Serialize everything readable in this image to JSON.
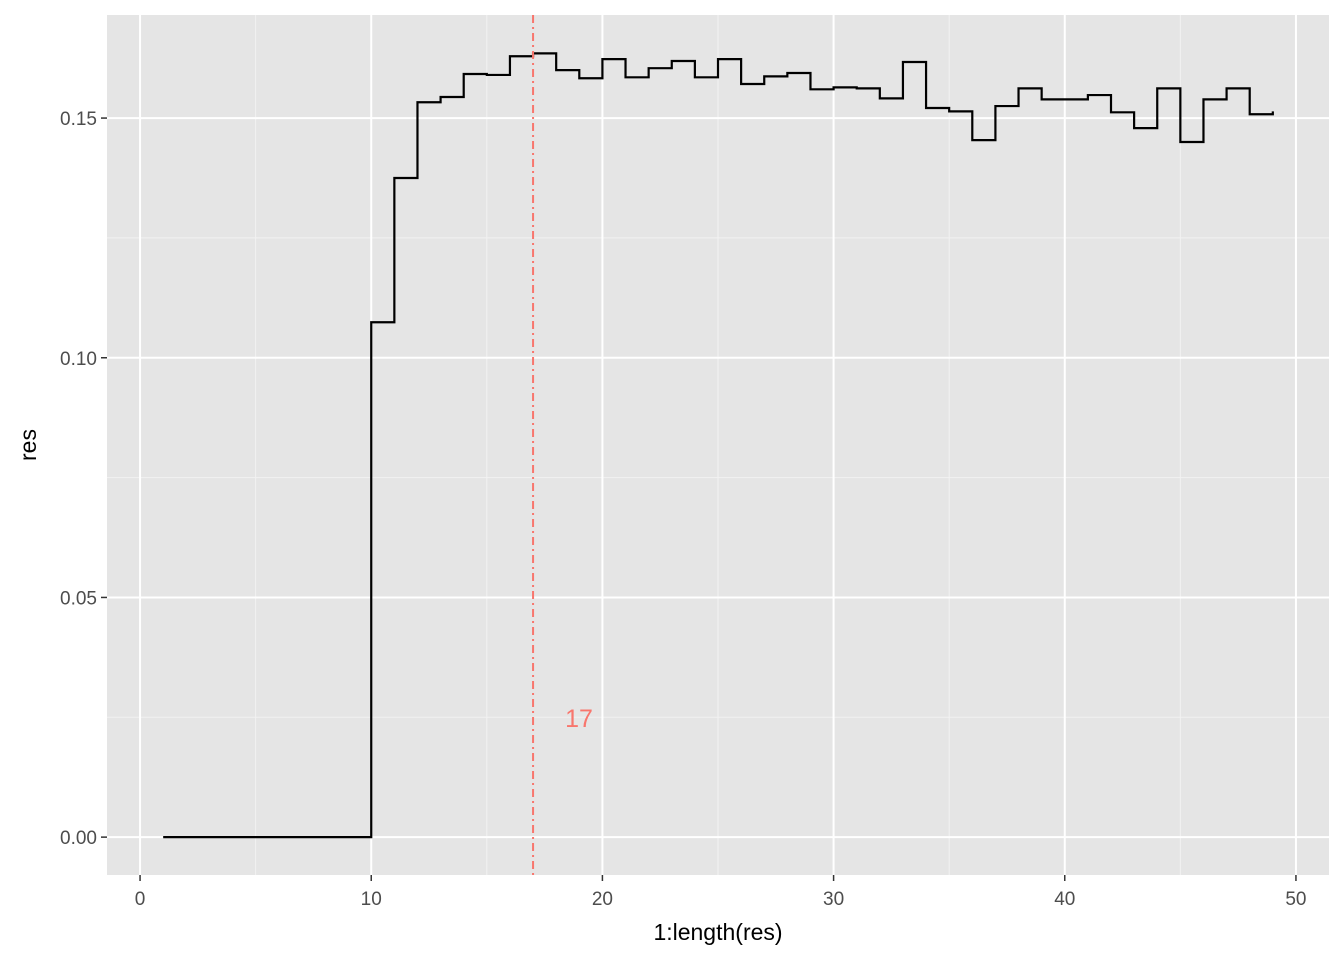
{
  "chart_data": {
    "type": "step",
    "x_label": "1:length(res)",
    "y_label": "res",
    "x": [
      1,
      2,
      3,
      4,
      5,
      6,
      7,
      8,
      9,
      10,
      11,
      12,
      13,
      14,
      15,
      16,
      17,
      18,
      19,
      20,
      21,
      22,
      23,
      24,
      25,
      26,
      27,
      28,
      29,
      30,
      31,
      32,
      33,
      34,
      35,
      36,
      37,
      38,
      39,
      40,
      41,
      42,
      43,
      44,
      45,
      46,
      47,
      48,
      49
    ],
    "series": [
      {
        "name": "res",
        "color": "#000000",
        "values": [
          0,
          0,
          0,
          0,
          0,
          0,
          0,
          0,
          0,
          0.1074,
          0.1375,
          0.1533,
          0.1544,
          0.1592,
          0.159,
          0.1629,
          0.1635,
          0.16,
          0.1583,
          0.1623,
          0.1585,
          0.1604,
          0.1619,
          0.1585,
          0.1623,
          0.1571,
          0.1587,
          0.1594,
          0.156,
          0.1564,
          0.1562,
          0.1541,
          0.1617,
          0.1521,
          0.1514,
          0.1454,
          0.1525,
          0.1562,
          0.1539,
          0.1539,
          0.1548,
          0.1512,
          0.1479,
          0.1562,
          0.145,
          0.1539,
          0.1562,
          0.1508,
          0.1514
        ]
      }
    ],
    "vline": {
      "x": 17,
      "label": "17",
      "color": "#f8766d"
    },
    "xlim": [
      -1.43,
      51.43
    ],
    "ylim": [
      -0.0079,
      0.1715
    ],
    "xticks": [
      0,
      10,
      20,
      30,
      40,
      50
    ],
    "yticks": [
      {
        "value": 0,
        "label": "0.00"
      },
      {
        "value": 0.05,
        "label": "0.05"
      },
      {
        "value": 0.1,
        "label": "0.10"
      },
      {
        "value": 0.15,
        "label": "0.15"
      }
    ],
    "x_minor_ticks": [
      5,
      15,
      25,
      35,
      45
    ],
    "y_minor_ticks": [
      0.025,
      0.075,
      0.125
    ],
    "grid": true
  }
}
